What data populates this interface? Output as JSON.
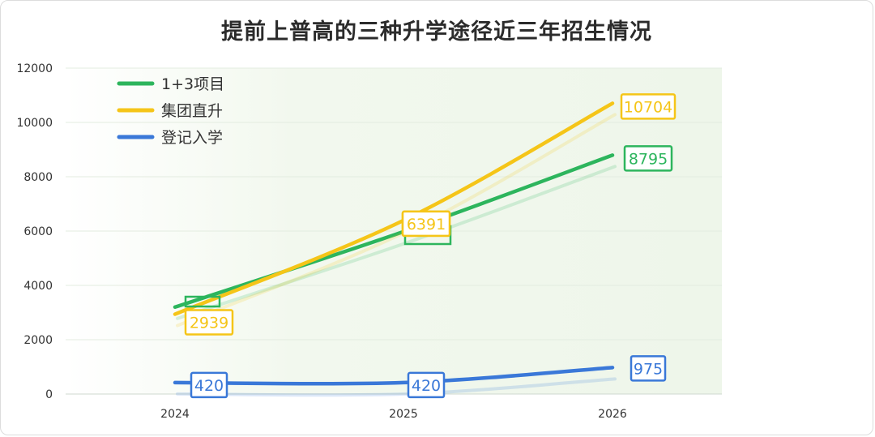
{
  "chart_data": {
    "type": "line",
    "title": "提前上普高的三种升学途径近三年招生情况",
    "x": [
      "2024",
      "2025",
      "2026"
    ],
    "ylim": [
      0,
      12000
    ],
    "yticks": [
      "0",
      "2000",
      "4000",
      "6000",
      "8000",
      "10000",
      "12000"
    ],
    "grid": true,
    "legend_position": "top-left",
    "series": [
      {
        "name": "1+3项目",
        "color": "#2db55d",
        "values": [
          3200,
          5977,
          8795
        ],
        "labels": [
          "",
          "",
          "8795"
        ]
      },
      {
        "name": "集团直升",
        "color": "#f5c518",
        "values": [
          2939,
          6391,
          10704
        ],
        "labels": [
          "2939",
          "6391",
          "10704"
        ]
      },
      {
        "name": "登记入学",
        "color": "#3a78d8",
        "values": [
          420,
          420,
          975
        ],
        "labels": [
          "420",
          "420",
          "975"
        ]
      }
    ]
  }
}
